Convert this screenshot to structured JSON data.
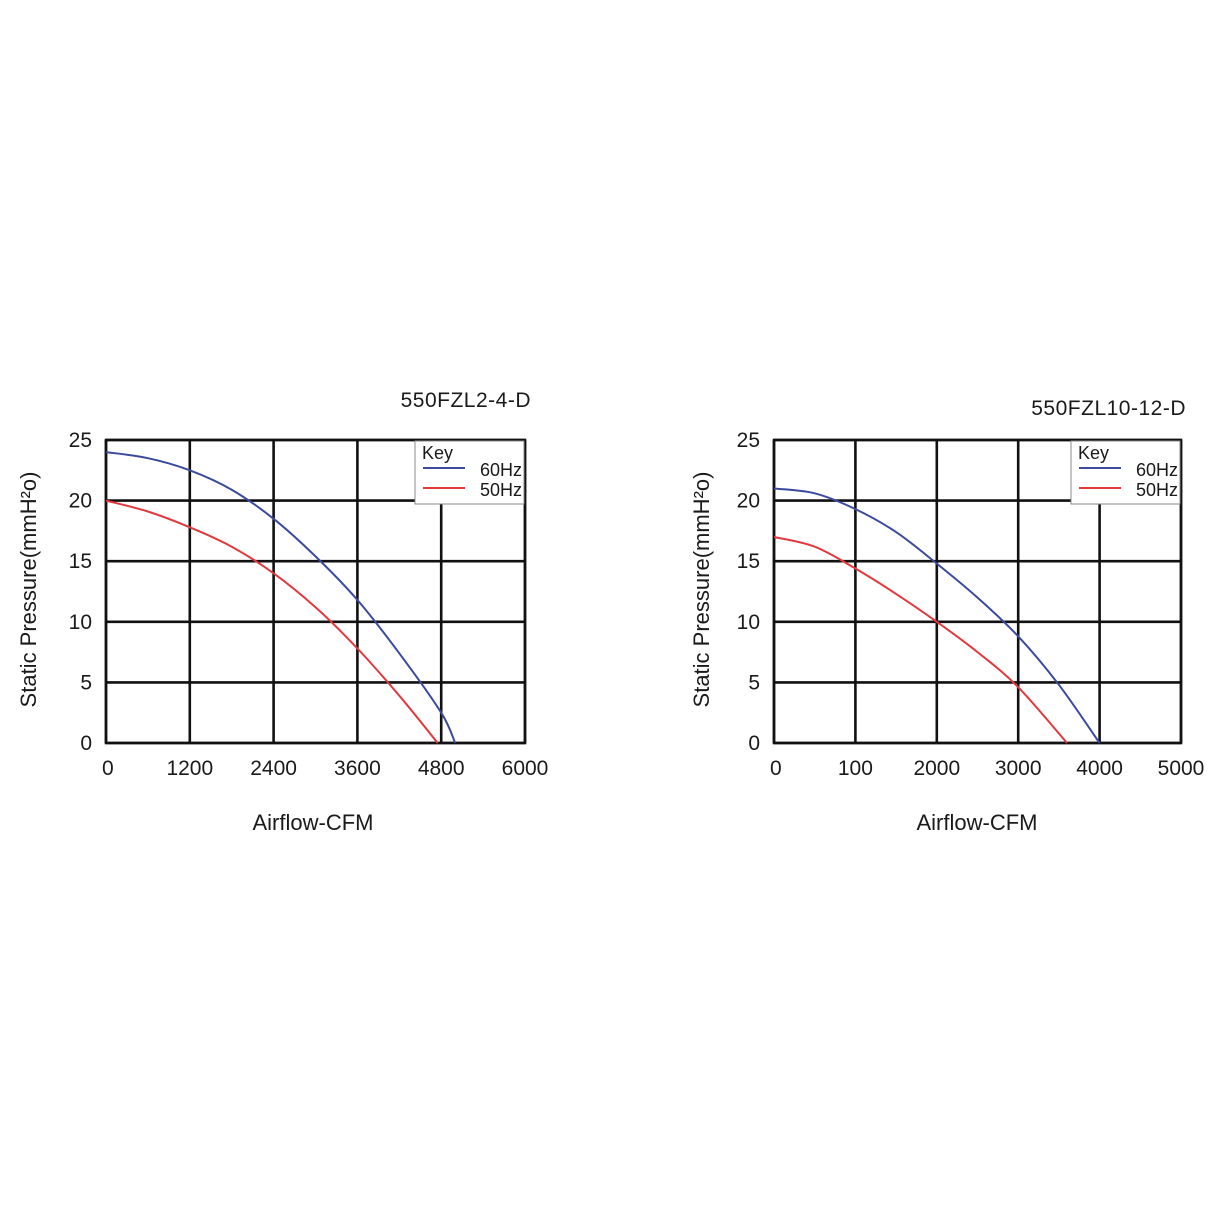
{
  "chart_data": [
    {
      "type": "line",
      "title": "550FZL2-4-D",
      "xlabel": "Airflow-CFM",
      "ylabel": "Static Pressure(mmH²o)",
      "xlim": [
        0,
        6000
      ],
      "ylim": [
        0,
        25
      ],
      "x_ticks": [
        "0",
        "1200",
        "2400",
        "3600",
        "4800",
        "6000"
      ],
      "y_ticks": [
        "0",
        "5",
        "10",
        "15",
        "20",
        "25"
      ],
      "grid": true,
      "legend": {
        "title": "Key",
        "placement": "top-right"
      },
      "series": [
        {
          "name": "60Hz",
          "color": "#3b4a9c",
          "x": [
            0,
            600,
            1200,
            1800,
            2400,
            3000,
            3600,
            4200,
            4800,
            5000
          ],
          "y": [
            24,
            23.5,
            22.5,
            20.9,
            18.5,
            15.4,
            11.8,
            7.4,
            2.5,
            0
          ]
        },
        {
          "name": "50Hz",
          "color": "#e0393e",
          "x": [
            0,
            600,
            1200,
            1800,
            2400,
            3000,
            3600,
            4200,
            4750
          ],
          "y": [
            20,
            19.1,
            17.8,
            16.2,
            14.0,
            11.2,
            7.8,
            3.9,
            0
          ]
        }
      ]
    },
    {
      "type": "line",
      "title": "550FZL10-12-D",
      "xlabel": "Airflow-CFM",
      "ylabel": "Static Pressure(mmH²o)",
      "xlim": [
        0,
        5000
      ],
      "ylim": [
        0,
        25
      ],
      "x_ticks": [
        "0",
        "100",
        "2000",
        "3000",
        "4000",
        "5000"
      ],
      "y_ticks": [
        "0",
        "5",
        "10",
        "15",
        "20",
        "25"
      ],
      "grid": true,
      "legend": {
        "title": "Key",
        "placement": "top-right"
      },
      "series": [
        {
          "name": "60Hz",
          "color": "#3b4a9c",
          "x": [
            0,
            500,
            1000,
            1500,
            2000,
            2500,
            3000,
            3500,
            4000
          ],
          "y": [
            21,
            20.6,
            19.3,
            17.4,
            14.8,
            12.0,
            8.8,
            4.8,
            0
          ]
        },
        {
          "name": "50Hz",
          "color": "#e0393e",
          "x": [
            0,
            500,
            1000,
            1500,
            2000,
            2500,
            3000,
            3600
          ],
          "y": [
            17,
            16.2,
            14.4,
            12.3,
            10.0,
            7.5,
            4.6,
            0
          ]
        }
      ]
    }
  ]
}
